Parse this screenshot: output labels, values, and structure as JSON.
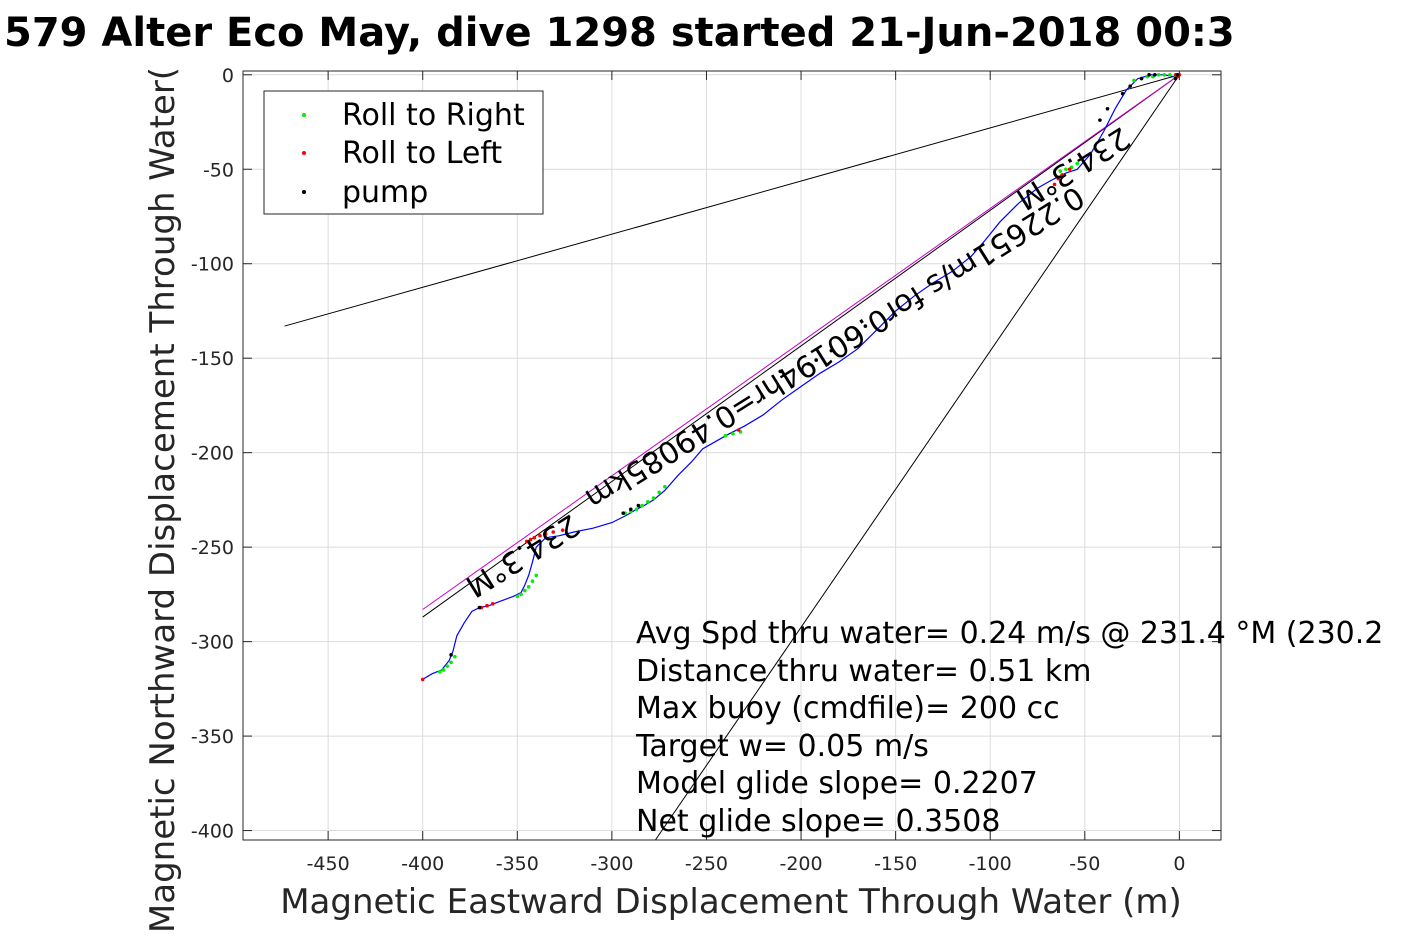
{
  "chart_data": {
    "type": "line",
    "title": "579 Alter Eco May, dive 1298 started 21-Jun-2018 00:3",
    "xlabel": "Magnetic Eastward Displacement Through Water (m)",
    "ylabel": "Magnetic Northward Displacement Through Water(",
    "xlim": [
      -495,
      22
    ],
    "ylim": [
      -405,
      2
    ],
    "xticks": [
      -450,
      -400,
      -350,
      -300,
      -250,
      -200,
      -150,
      -100,
      -50,
      0
    ],
    "yticks": [
      0,
      -50,
      -100,
      -150,
      -200,
      -250,
      -300,
      -350,
      -400
    ],
    "xtick_labels": [
      "-450",
      "-400",
      "-350",
      "-300",
      "-250",
      "-200",
      "-150",
      "-100",
      "-50",
      "0"
    ],
    "ytick_labels": [
      "0",
      "-50",
      "-100",
      "-150",
      "-200",
      "-250",
      "-300",
      "-350",
      "-400"
    ],
    "grid": true,
    "legend": {
      "placement": "top-left",
      "entries": [
        {
          "name": "Roll to Right",
          "color": "#00ee00"
        },
        {
          "name": "Roll to Left",
          "color": "#ff0000"
        },
        {
          "name": "pump",
          "color": "#000000"
        }
      ]
    },
    "track": {
      "color": "#0000ff",
      "x": [
        0,
        -3,
        -8,
        -15,
        -22,
        -28,
        -34,
        -40,
        -47,
        -54,
        -60,
        -64,
        -68,
        -75,
        -85,
        -95,
        -103,
        -110,
        -120,
        -130,
        -140,
        -150,
        -160,
        -170,
        -180,
        -190,
        -200,
        -210,
        -220,
        -230,
        -238,
        -245,
        -252,
        -258,
        -265,
        -272,
        -278,
        -283,
        -287,
        -292,
        -300,
        -310,
        -320,
        -328,
        -335,
        -340,
        -342,
        -344,
        -346,
        -348,
        -352,
        -360,
        -365,
        -370,
        -374,
        -378,
        -382,
        -384,
        -386,
        -390,
        -395,
        -400
      ],
      "y": [
        0,
        -1,
        0,
        0,
        -2,
        -8,
        -18,
        -30,
        -42,
        -50,
        -52,
        -54,
        -56,
        -60,
        -68,
        -78,
        -88,
        -96,
        -104,
        -110,
        -117,
        -125,
        -135,
        -145,
        -152,
        -158,
        -165,
        -172,
        -180,
        -186,
        -190,
        -194,
        -198,
        -205,
        -212,
        -220,
        -225,
        -228,
        -230,
        -233,
        -237,
        -240,
        -242,
        -244,
        -245,
        -250,
        -258,
        -265,
        -270,
        -274,
        -276,
        -279,
        -281,
        -282,
        -284,
        -290,
        -297,
        -305,
        -310,
        -315,
        -317,
        -320
      ]
    },
    "roll_right": {
      "x": [
        -2,
        -5,
        -8,
        -11,
        -14,
        -17,
        -20,
        -24,
        -54,
        -57,
        -60,
        -63,
        -232,
        -236,
        -240,
        -272,
        -275,
        -278,
        -281,
        -284,
        -287,
        -290,
        -293,
        -340,
        -342,
        -344,
        -346,
        -348,
        -350,
        -383,
        -385,
        -387,
        -389,
        -391
      ],
      "y": [
        -1,
        0,
        0,
        0,
        -1,
        -1,
        -2,
        -3,
        -47,
        -49,
        -50,
        -51,
        -189,
        -190,
        -191,
        -218,
        -221,
        -224,
        -226,
        -228,
        -230,
        -231,
        -232,
        -265,
        -268,
        -271,
        -273,
        -275,
        -276,
        -308,
        -311,
        -313,
        -315,
        -316
      ]
    },
    "roll_left": {
      "x": [
        0,
        -1,
        -2,
        -58,
        -62,
        -64,
        -66,
        -233,
        -326,
        -331,
        -335,
        -338,
        -341,
        -343,
        -345,
        -363,
        -366,
        -369,
        -400
      ],
      "y": [
        0,
        -1,
        0,
        -50,
        -53,
        -55,
        -58,
        -188,
        -241,
        -242,
        -243,
        -244,
        -245,
        -246,
        -247,
        -280,
        -281,
        -282,
        -320
      ]
    },
    "pump": {
      "x": [
        -1,
        -2,
        -13,
        -16,
        -20,
        -26,
        -30,
        -38,
        -42,
        -166,
        -175,
        -184,
        -192,
        -196,
        -211,
        -286,
        -290,
        -294,
        -370,
        -385
      ],
      "y": [
        0,
        -2,
        0,
        0,
        -2,
        -6,
        -10,
        -18,
        -24,
        -133,
        -140,
        -146,
        -151,
        -153,
        -157,
        -228,
        -230,
        -232,
        -282,
        -307
      ]
    },
    "reference_lines": [
      {
        "x": [
          0,
          -473
        ],
        "y": [
          0,
          -133
        ],
        "color": "#000000"
      },
      {
        "x": [
          0,
          -277
        ],
        "y": [
          0,
          -405
        ],
        "color": "#000000"
      },
      {
        "x": [
          0,
          -400
        ],
        "y": [
          0,
          -287
        ],
        "color": "#000000"
      },
      {
        "x": [
          0,
          -400
        ],
        "y": [
          0,
          -283
        ],
        "color": "#cc00cc"
      }
    ],
    "rotated_annotations": [
      {
        "text": "234.3°M",
        "anchor_x": -350,
        "anchor_y": -250
      },
      {
        "text": "0.22651m/s for0.60194hr=0.49085km",
        "anchor_x": -185,
        "anchor_y": -140
      },
      {
        "text": "234.3°M",
        "anchor_x": -59,
        "anchor_y": -45
      }
    ],
    "annotations": [
      "Avg Spd thru water=  0.24 m/s @ 231.4 °M (230.2",
      "Distance thru water=  0.51 km",
      "Max buoy (cmdfile)= 200 cc",
      "Target w= 0.05 m/s",
      "Model glide slope= 0.2207",
      "Net glide slope= 0.3508"
    ]
  }
}
